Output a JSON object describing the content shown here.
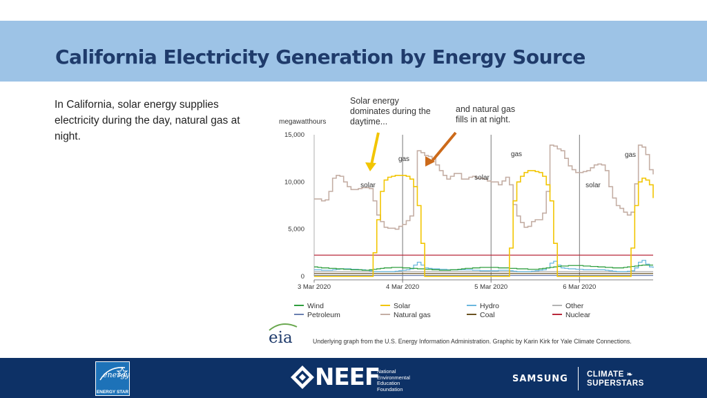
{
  "slide": {
    "title": "California Electricity Generation by Energy Source",
    "body": "In California, solar energy supplies electricity during the day, natural gas at night."
  },
  "chart_data": {
    "type": "line",
    "ylabel": "megawatthours",
    "ylim": [
      0,
      15000
    ],
    "yticks": [
      0,
      5000,
      10000,
      15000
    ],
    "ytick_labels": [
      "0",
      "5,000",
      "10,000",
      "15,000"
    ],
    "x": [
      "2020-03-03T00",
      "2020-03-03T01",
      "2020-03-03T02",
      "2020-03-03T03",
      "2020-03-03T04",
      "2020-03-03T05",
      "2020-03-03T06",
      "2020-03-03T07",
      "2020-03-03T08",
      "2020-03-03T09",
      "2020-03-03T10",
      "2020-03-03T11",
      "2020-03-03T12",
      "2020-03-03T13",
      "2020-03-03T14",
      "2020-03-03T15",
      "2020-03-03T16",
      "2020-03-03T17",
      "2020-03-03T18",
      "2020-03-03T19",
      "2020-03-03T20",
      "2020-03-03T21",
      "2020-03-03T22",
      "2020-03-03T23",
      "2020-03-04T00",
      "2020-03-04T01",
      "2020-03-04T02",
      "2020-03-04T03",
      "2020-03-04T04",
      "2020-03-04T05",
      "2020-03-04T06",
      "2020-03-04T07",
      "2020-03-04T08",
      "2020-03-04T09",
      "2020-03-04T10",
      "2020-03-04T11",
      "2020-03-04T12",
      "2020-03-04T13",
      "2020-03-04T14",
      "2020-03-04T15",
      "2020-03-04T16",
      "2020-03-04T17",
      "2020-03-04T18",
      "2020-03-04T19",
      "2020-03-04T20",
      "2020-03-04T21",
      "2020-03-04T22",
      "2020-03-04T23",
      "2020-03-05T00",
      "2020-03-05T01",
      "2020-03-05T02",
      "2020-03-05T03",
      "2020-03-05T04",
      "2020-03-05T05",
      "2020-03-05T06",
      "2020-03-05T07",
      "2020-03-05T08",
      "2020-03-05T09",
      "2020-03-05T10",
      "2020-03-05T11",
      "2020-03-05T12",
      "2020-03-05T13",
      "2020-03-05T14",
      "2020-03-05T15",
      "2020-03-05T16",
      "2020-03-05T17",
      "2020-03-05T18",
      "2020-03-05T19",
      "2020-03-05T20",
      "2020-03-05T21",
      "2020-03-05T22",
      "2020-03-05T23",
      "2020-03-06T00",
      "2020-03-06T01",
      "2020-03-06T02",
      "2020-03-06T03",
      "2020-03-06T04",
      "2020-03-06T05",
      "2020-03-06T06",
      "2020-03-06T07",
      "2020-03-06T08",
      "2020-03-06T09",
      "2020-03-06T10",
      "2020-03-06T11",
      "2020-03-06T12",
      "2020-03-06T13",
      "2020-03-06T14",
      "2020-03-06T15",
      "2020-03-06T16",
      "2020-03-06T17",
      "2020-03-06T18",
      "2020-03-06T19",
      "2020-03-06T20"
    ],
    "xticks": [
      0,
      24,
      48,
      72,
      92
    ],
    "xtick_labels": [
      "3 Mar 2020",
      "4 Mar 2020",
      "5 Mar 2020",
      "6 Mar 2020"
    ],
    "series": [
      {
        "name": "Wind",
        "color": "#2e9e3e",
        "values": [
          1000,
          950,
          900,
          900,
          850,
          850,
          800,
          800,
          750,
          750,
          700,
          700,
          700,
          650,
          650,
          700,
          750,
          800,
          850,
          900,
          900,
          950,
          950,
          950,
          900,
          900,
          850,
          850,
          800,
          800,
          750,
          750,
          700,
          700,
          650,
          650,
          650,
          700,
          700,
          750,
          800,
          850,
          850,
          900,
          900,
          950,
          950,
          950,
          950,
          950,
          900,
          900,
          900,
          850,
          850,
          800,
          800,
          800,
          750,
          750,
          750,
          800,
          850,
          900,
          950,
          1000,
          1050,
          1100,
          1100,
          1150,
          1150,
          1150,
          1150,
          1100,
          1100,
          1050,
          1050,
          1000,
          1000,
          950,
          950,
          900,
          900,
          900,
          950,
          1000,
          1050,
          1100,
          1150,
          1200,
          1200,
          1200,
          1200
        ]
      },
      {
        "name": "Petroleum",
        "color": "#6a7fb0",
        "values": [
          100,
          100,
          100,
          100,
          100,
          100,
          100,
          100,
          100,
          100,
          100,
          100,
          100,
          100,
          100,
          100,
          100,
          100,
          100,
          100,
          100,
          100,
          100,
          100,
          100,
          100,
          100,
          100,
          100,
          100,
          100,
          100,
          100,
          100,
          100,
          100,
          100,
          100,
          100,
          100,
          100,
          100,
          100,
          100,
          100,
          100,
          100,
          100,
          100,
          100,
          100,
          100,
          100,
          100,
          100,
          100,
          100,
          100,
          100,
          100,
          100,
          100,
          100,
          100,
          100,
          100,
          100,
          100,
          100,
          100,
          100,
          100,
          100,
          100,
          100,
          100,
          100,
          100,
          100,
          100,
          100,
          100,
          100,
          100,
          100,
          100,
          100,
          100,
          100,
          100,
          100,
          100,
          100
        ]
      },
      {
        "name": "Solar",
        "color": "#f2c500",
        "values": [
          0,
          0,
          0,
          0,
          0,
          0,
          0,
          0,
          0,
          0,
          0,
          0,
          0,
          0,
          0,
          0,
          2500,
          6000,
          9000,
          10200,
          10500,
          10600,
          10700,
          10700,
          10700,
          10600,
          10300,
          9500,
          7500,
          3500,
          0,
          0,
          0,
          0,
          0,
          0,
          0,
          0,
          0,
          0,
          0,
          0,
          0,
          0,
          0,
          0,
          0,
          0,
          0,
          0,
          0,
          0,
          0,
          3000,
          8000,
          10000,
          10600,
          11000,
          11200,
          11200,
          11100,
          11000,
          10600,
          9700,
          8000,
          3500,
          0,
          0,
          0,
          0,
          0,
          0,
          0,
          0,
          0,
          0,
          0,
          0,
          0,
          0,
          0,
          0,
          0,
          0,
          0,
          0,
          3000,
          7500,
          10000,
          10400,
          10200,
          9700,
          8300
        ]
      },
      {
        "name": "Natural gas",
        "color": "#c4aea4",
        "values": [
          8200,
          8200,
          8000,
          8100,
          9000,
          10400,
          10700,
          10600,
          10000,
          9500,
          9200,
          9200,
          9300,
          9400,
          9400,
          9300,
          8000,
          6500,
          5800,
          5200,
          5100,
          5100,
          5000,
          5300,
          5500,
          5900,
          6400,
          9500,
          13300,
          13100,
          12800,
          12700,
          12500,
          11800,
          11200,
          10700,
          10300,
          10600,
          10900,
          10900,
          10300,
          10300,
          10500,
          10600,
          10400,
          10400,
          10300,
          10100,
          10000,
          10000,
          9700,
          10100,
          10500,
          9700,
          7600,
          6400,
          5700,
          5200,
          5300,
          5800,
          6000,
          6000,
          6700,
          9000,
          13900,
          13800,
          13500,
          13300,
          12500,
          11700,
          11300,
          11000,
          11000,
          11100,
          11200,
          11500,
          11800,
          11900,
          11800,
          11200,
          9500,
          8300,
          7500,
          7200,
          6800,
          6500,
          6800,
          9800,
          13900,
          13700,
          12900,
          11300,
          10800
        ]
      },
      {
        "name": "Hydro",
        "color": "#6ab7de",
        "values": [
          700,
          700,
          650,
          650,
          650,
          700,
          750,
          800,
          800,
          800,
          750,
          750,
          700,
          700,
          650,
          600,
          500,
          500,
          500,
          500,
          500,
          500,
          550,
          600,
          650,
          700,
          800,
          1200,
          1500,
          1200,
          900,
          850,
          800,
          800,
          750,
          750,
          700,
          700,
          700,
          700,
          700,
          700,
          700,
          650,
          650,
          600,
          600,
          600,
          600,
          600,
          650,
          650,
          650,
          600,
          550,
          500,
          500,
          500,
          500,
          550,
          600,
          650,
          700,
          900,
          1400,
          1600,
          1200,
          900,
          850,
          800,
          800,
          750,
          750,
          700,
          700,
          700,
          700,
          700,
          700,
          650,
          600,
          550,
          500,
          500,
          500,
          550,
          600,
          900,
          1500,
          1700,
          1300,
          1000,
          900
        ]
      },
      {
        "name": "Coal",
        "color": "#6b5321",
        "values": [
          300,
          300,
          300,
          300,
          300,
          300,
          300,
          300,
          300,
          300,
          300,
          300,
          300,
          300,
          300,
          300,
          300,
          300,
          300,
          300,
          300,
          300,
          300,
          300,
          300,
          300,
          300,
          300,
          300,
          300,
          300,
          300,
          300,
          300,
          300,
          300,
          300,
          300,
          300,
          300,
          300,
          300,
          300,
          300,
          300,
          300,
          300,
          300,
          300,
          300,
          300,
          300,
          300,
          300,
          300,
          300,
          300,
          300,
          300,
          300,
          300,
          300,
          300,
          300,
          300,
          300,
          300,
          300,
          300,
          300,
          300,
          300,
          300,
          300,
          300,
          300,
          300,
          300,
          300,
          300,
          300,
          300,
          300,
          300,
          300,
          300,
          300,
          300,
          300,
          300,
          300,
          300,
          300
        ]
      },
      {
        "name": "Other",
        "color": "#b3b3b3",
        "values": [
          500,
          500,
          500,
          500,
          500,
          500,
          500,
          500,
          500,
          500,
          500,
          500,
          500,
          500,
          500,
          500,
          500,
          500,
          500,
          500,
          500,
          500,
          500,
          500,
          500,
          500,
          500,
          500,
          500,
          500,
          500,
          500,
          500,
          500,
          500,
          500,
          500,
          500,
          500,
          500,
          500,
          500,
          500,
          500,
          500,
          500,
          500,
          500,
          500,
          500,
          500,
          500,
          500,
          500,
          500,
          500,
          500,
          500,
          500,
          500,
          500,
          500,
          500,
          500,
          500,
          500,
          500,
          500,
          500,
          500,
          500,
          500,
          500,
          500,
          500,
          500,
          500,
          500,
          500,
          500,
          500,
          500,
          500,
          500,
          500,
          500,
          500,
          500,
          500,
          500,
          500,
          500,
          500
        ]
      },
      {
        "name": "Nuclear",
        "color": "#b8283a",
        "values": [
          2250,
          2250,
          2250,
          2250,
          2250,
          2250,
          2250,
          2250,
          2250,
          2250,
          2250,
          2250,
          2250,
          2250,
          2250,
          2250,
          2250,
          2250,
          2250,
          2250,
          2250,
          2250,
          2250,
          2250,
          2250,
          2250,
          2250,
          2250,
          2250,
          2250,
          2250,
          2250,
          2250,
          2250,
          2250,
          2250,
          2250,
          2250,
          2250,
          2250,
          2250,
          2250,
          2250,
          2250,
          2250,
          2250,
          2250,
          2250,
          2250,
          2250,
          2250,
          2250,
          2250,
          2250,
          2250,
          2250,
          2250,
          2250,
          2250,
          2250,
          2250,
          2250,
          2250,
          2250,
          2250,
          2250,
          2250,
          2250,
          2250,
          2250,
          2250,
          2250,
          2250,
          2250,
          2250,
          2250,
          2250,
          2250,
          2250,
          2250,
          2250,
          2250,
          2250,
          2250,
          2250,
          2250,
          2250,
          2250,
          2250,
          2250,
          2250,
          2250,
          2250
        ]
      }
    ],
    "legend_order": [
      "Wind",
      "Solar",
      "Hydro",
      "Other",
      "Petroleum",
      "Natural gas",
      "Coal",
      "Nuclear"
    ],
    "legend_placement": "bottom",
    "grid": false,
    "annotations": [
      {
        "text": "Solar energy dominates during the daytime...",
        "arrow_color": "#f2c500"
      },
      {
        "text": "and natural gas fills in at night.",
        "arrow_color": "#cc6a1a"
      },
      {
        "text": "gas"
      },
      {
        "text": "gas"
      },
      {
        "text": "gas"
      },
      {
        "text": "solar"
      },
      {
        "text": "solar"
      },
      {
        "text": "solar"
      }
    ],
    "logo": "eia",
    "credit": "Underlying graph from the U.S. Energy Information Administration. Graphic by Karin Kirk for Yale Climate Connections."
  },
  "footer": {
    "energy_star_label": "ENERGY STAR",
    "neef_word": "NEEF",
    "neef_sub": [
      "National",
      "Environmental",
      "Education",
      "Foundation"
    ],
    "samsung": "SAMSUNG",
    "climate_lines": [
      "CLIMATE",
      "SUPERSTARS"
    ],
    "colors": {
      "footer_bg": "#0d3166",
      "title_band": "#9dc3e6",
      "title_text": "#1f3b6b"
    }
  }
}
